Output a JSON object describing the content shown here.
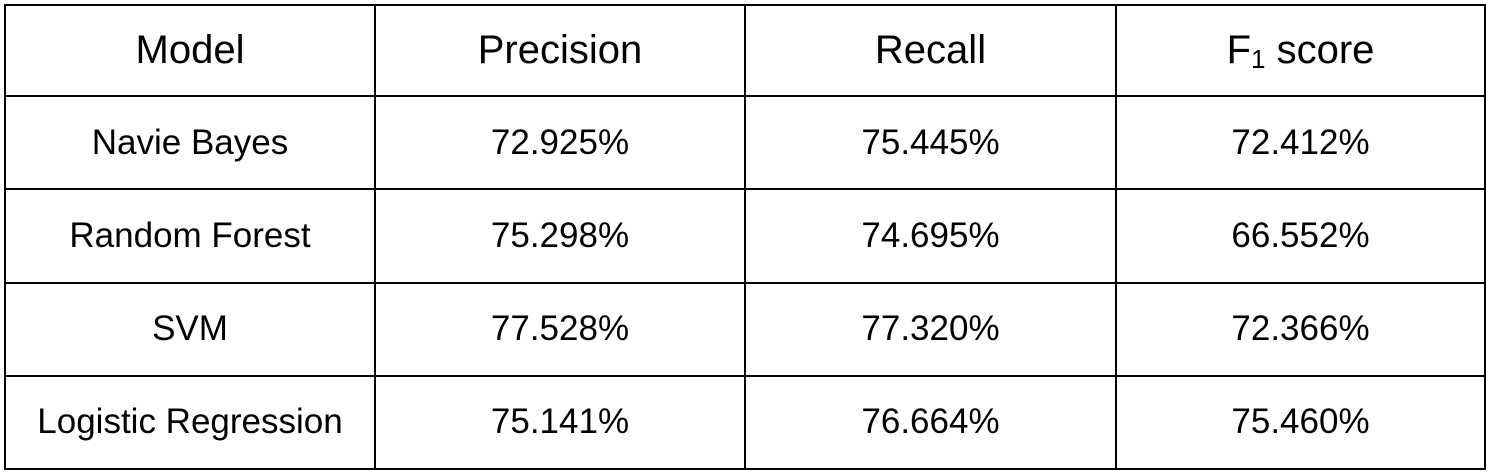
{
  "table": {
    "headers": {
      "model": "Model",
      "precision": "Precision",
      "recall": "Recall",
      "f1_prefix": "F",
      "f1_subscript": "1",
      "f1_suffix": " score"
    },
    "rows": [
      {
        "model": "Navie Bayes",
        "precision": "72.925%",
        "recall": "75.445%",
        "f1": "72.412%"
      },
      {
        "model": "Random Forest",
        "precision": "75.298%",
        "recall": "74.695%",
        "f1": "66.552%"
      },
      {
        "model": "SVM",
        "precision": "77.528%",
        "recall": "77.320%",
        "f1": "72.366%"
      },
      {
        "model": "Logistic Regression",
        "precision": "75.141%",
        "recall": "76.664%",
        "f1": "75.460%"
      }
    ]
  }
}
